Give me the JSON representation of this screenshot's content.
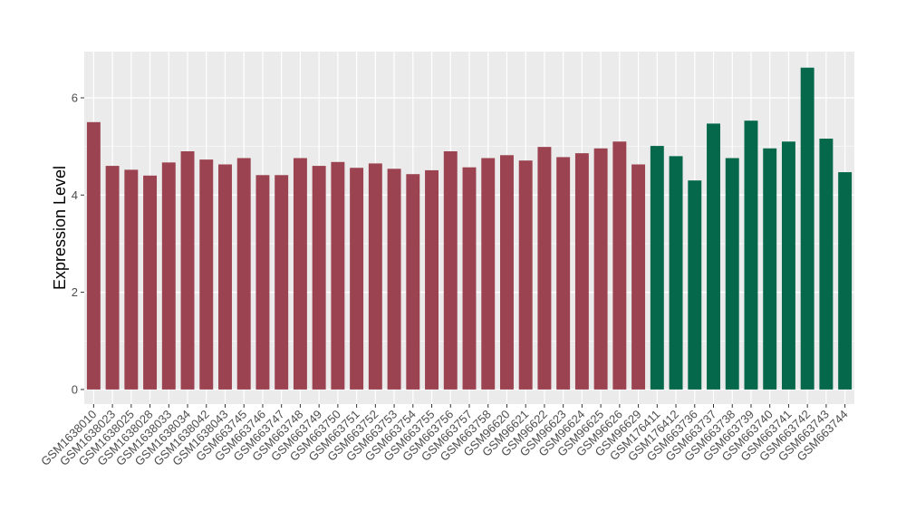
{
  "chart_data": {
    "type": "bar",
    "title": "",
    "xlabel": "",
    "ylabel": "Expression Level",
    "ylim": [
      -0.3,
      6.95
    ],
    "yticks": [
      0,
      2,
      4,
      6
    ],
    "grid": true,
    "legend": "none",
    "panel_background": "#ebebeb",
    "gridline_color": "#ffffff",
    "categories": [
      "GSM1638010",
      "GSM1638023",
      "GSM1638025",
      "GSM1638028",
      "GSM1638033",
      "GSM1638034",
      "GSM1638042",
      "GSM1638043",
      "GSM663745",
      "GSM663746",
      "GSM663747",
      "GSM663748",
      "GSM663749",
      "GSM663750",
      "GSM663751",
      "GSM663752",
      "GSM663753",
      "GSM663754",
      "GSM663755",
      "GSM663756",
      "GSM663757",
      "GSM663758",
      "GSM96620",
      "GSM96621",
      "GSM96622",
      "GSM96623",
      "GSM96624",
      "GSM96625",
      "GSM96626",
      "GSM96629",
      "GSM176411",
      "GSM176412",
      "GSM663736",
      "GSM663737",
      "GSM663738",
      "GSM663739",
      "GSM663740",
      "GSM663741",
      "GSM663742",
      "GSM663743",
      "GSM663744"
    ],
    "values": [
      5.5,
      4.6,
      4.52,
      4.4,
      4.67,
      4.9,
      4.73,
      4.63,
      4.76,
      4.41,
      4.41,
      4.76,
      4.6,
      4.68,
      4.56,
      4.65,
      4.54,
      4.43,
      4.51,
      4.9,
      4.57,
      4.76,
      4.82,
      4.71,
      4.99,
      4.78,
      4.86,
      4.96,
      5.1,
      4.63,
      5.01,
      4.8,
      4.3,
      5.47,
      4.76,
      5.53,
      4.96,
      5.1,
      6.62,
      5.16,
      4.47
    ],
    "groups": [
      {
        "color": "#9b4350",
        "start": 0,
        "end": 29
      },
      {
        "color": "#05684a",
        "start": 30,
        "end": 40
      }
    ]
  }
}
